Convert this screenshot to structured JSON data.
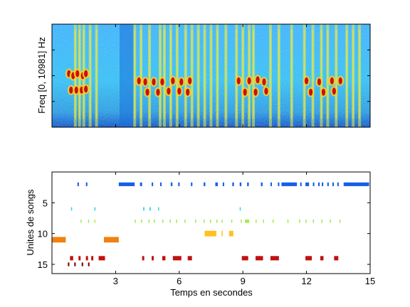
{
  "chart_data": [
    {
      "type": "heatmap",
      "ylabel": "Freq [0, 10981] Hz",
      "xlim": [
        0,
        15
      ],
      "colormap": "jet",
      "calls": [
        {
          "t": 0.8,
          "f": 0.52
        },
        {
          "t": 1.0,
          "f": 0.5
        },
        {
          "t": 1.2,
          "f": 0.52
        },
        {
          "t": 1.45,
          "f": 0.5
        },
        {
          "t": 1.6,
          "f": 0.52
        },
        {
          "t": 0.9,
          "f": 0.36
        },
        {
          "t": 1.15,
          "f": 0.36
        },
        {
          "t": 1.4,
          "f": 0.36
        },
        {
          "t": 1.6,
          "f": 0.37
        },
        {
          "t": 4.1,
          "f": 0.45
        },
        {
          "t": 4.4,
          "f": 0.44
        },
        {
          "t": 4.8,
          "f": 0.44
        },
        {
          "t": 5.2,
          "f": 0.44
        },
        {
          "t": 5.7,
          "f": 0.45
        },
        {
          "t": 6.1,
          "f": 0.44
        },
        {
          "t": 6.5,
          "f": 0.45
        },
        {
          "t": 4.5,
          "f": 0.34
        },
        {
          "t": 5.0,
          "f": 0.34
        },
        {
          "t": 5.5,
          "f": 0.35
        },
        {
          "t": 6.0,
          "f": 0.35
        },
        {
          "t": 6.4,
          "f": 0.34
        },
        {
          "t": 8.8,
          "f": 0.45
        },
        {
          "t": 9.3,
          "f": 0.45
        },
        {
          "t": 9.7,
          "f": 0.46
        },
        {
          "t": 10.0,
          "f": 0.44
        },
        {
          "t": 9.1,
          "f": 0.34
        },
        {
          "t": 9.6,
          "f": 0.34
        },
        {
          "t": 10.1,
          "f": 0.35
        },
        {
          "t": 12.0,
          "f": 0.45
        },
        {
          "t": 12.6,
          "f": 0.44
        },
        {
          "t": 13.2,
          "f": 0.45
        },
        {
          "t": 13.6,
          "f": 0.45
        },
        {
          "t": 12.2,
          "f": 0.34
        },
        {
          "t": 12.8,
          "f": 0.34
        },
        {
          "t": 13.3,
          "f": 0.35
        }
      ],
      "stripe_times": [
        1.1,
        1.3,
        1.5,
        1.8,
        2.1,
        3.9,
        4.2,
        4.6,
        5.1,
        5.3,
        5.6,
        5.9,
        6.3,
        6.6,
        6.9,
        7.2,
        7.5,
        7.8,
        8.2,
        8.7,
        9.0,
        9.3,
        9.5,
        10.3,
        10.7,
        11.3,
        11.9,
        12.3,
        12.7,
        13.0,
        13.4,
        13.9,
        14.2,
        14.5
      ]
    },
    {
      "type": "raster",
      "xlabel": "Temps en secondes",
      "ylabel": "Unites de songs",
      "xlim": [
        0,
        15
      ],
      "ylim": [
        0,
        16.5
      ],
      "y_reversed": true,
      "xticks": [
        3,
        6,
        9,
        12,
        15
      ],
      "yticks": [
        5,
        10,
        15
      ],
      "rows": [
        {
          "unit": 2,
          "color": "#1560e8",
          "thickness": 0.6,
          "segments": [
            [
              1.2,
              1.27
            ],
            [
              1.6,
              1.67
            ],
            [
              3.15,
              3.9
            ],
            [
              4.15,
              4.25
            ],
            [
              4.7,
              4.77
            ],
            [
              5.1,
              5.17
            ],
            [
              5.6,
              5.68
            ],
            [
              5.95,
              6.02
            ],
            [
              6.55,
              6.62
            ],
            [
              7.15,
              7.23
            ],
            [
              7.7,
              7.82
            ],
            [
              8.05,
              8.12
            ],
            [
              8.5,
              8.58
            ],
            [
              8.85,
              8.93
            ],
            [
              9.2,
              9.28
            ],
            [
              9.85,
              9.93
            ],
            [
              10.3,
              10.37
            ],
            [
              10.65,
              10.72
            ],
            [
              10.82,
              11.55
            ],
            [
              11.7,
              11.77
            ],
            [
              11.95,
              12.12
            ],
            [
              12.3,
              12.37
            ],
            [
              12.55,
              12.62
            ],
            [
              12.72,
              12.79
            ],
            [
              12.98,
              13.05
            ],
            [
              13.22,
              13.29
            ],
            [
              13.45,
              13.52
            ],
            [
              13.75,
              14.95
            ]
          ]
        },
        {
          "unit": 6,
          "color": "#22d8e8",
          "thickness": 0.55,
          "segments": [
            [
              0.9,
              0.95
            ],
            [
              2.0,
              2.05
            ],
            [
              4.3,
              4.36
            ],
            [
              4.6,
              4.66
            ],
            [
              5.0,
              5.05
            ],
            [
              8.85,
              8.9
            ]
          ]
        },
        {
          "unit": 8,
          "color": "#a8e850",
          "thickness": 0.55,
          "segments": [
            [
              1.35,
              1.4
            ],
            [
              1.7,
              1.75
            ],
            [
              2.0,
              2.05
            ],
            [
              3.9,
              3.95
            ],
            [
              4.2,
              4.25
            ],
            [
              4.55,
              4.6
            ],
            [
              4.8,
              4.85
            ],
            [
              5.2,
              5.25
            ],
            [
              5.55,
              5.6
            ],
            [
              5.85,
              5.9
            ],
            [
              6.25,
              6.3
            ],
            [
              6.75,
              6.8
            ],
            [
              7.15,
              7.2
            ],
            [
              7.45,
              7.5
            ],
            [
              7.75,
              7.8
            ],
            [
              8.0,
              8.05
            ],
            [
              8.45,
              8.5
            ],
            [
              8.9,
              8.95
            ],
            [
              9.1,
              9.3
            ],
            [
              9.6,
              9.65
            ],
            [
              9.95,
              10.0
            ],
            [
              10.4,
              10.45
            ],
            [
              11.1,
              11.15
            ],
            [
              11.65,
              11.7
            ],
            [
              11.95,
              12.0
            ],
            [
              12.3,
              12.35
            ],
            [
              12.7,
              12.75
            ],
            [
              13.1,
              13.15
            ],
            [
              13.55,
              13.6
            ]
          ]
        },
        {
          "unit": 11,
          "color": "#f08010",
          "thickness": 0.9,
          "segments": [
            [
              0.0,
              0.65
            ],
            [
              2.45,
              3.15
            ]
          ]
        },
        {
          "unit": 10,
          "color": "#ffc020",
          "thickness": 0.9,
          "segments": [
            [
              7.2,
              7.75
            ],
            [
              8.0,
              8.05
            ],
            [
              8.35,
              8.55
            ]
          ]
        },
        {
          "unit": 14,
          "color": "#c01010",
          "thickness": 0.7,
          "segments": [
            [
              0.85,
              1.0
            ],
            [
              1.25,
              1.35
            ],
            [
              1.6,
              1.7
            ],
            [
              1.85,
              1.95
            ],
            [
              2.2,
              2.5
            ],
            [
              4.25,
              4.35
            ],
            [
              4.7,
              4.8
            ],
            [
              5.2,
              5.35
            ],
            [
              5.7,
              6.1
            ],
            [
              6.4,
              6.6
            ],
            [
              8.95,
              9.25
            ],
            [
              9.6,
              9.95
            ],
            [
              10.3,
              10.7
            ],
            [
              11.95,
              12.25
            ],
            [
              12.65,
              12.8
            ],
            [
              13.3,
              13.5
            ]
          ]
        },
        {
          "unit": 15,
          "color": "#780000",
          "thickness": 0.6,
          "segments": [
            [
              0.75,
              0.82
            ],
            [
              1.05,
              1.12
            ],
            [
              1.4,
              1.47
            ],
            [
              1.7,
              1.77
            ]
          ]
        }
      ]
    }
  ]
}
